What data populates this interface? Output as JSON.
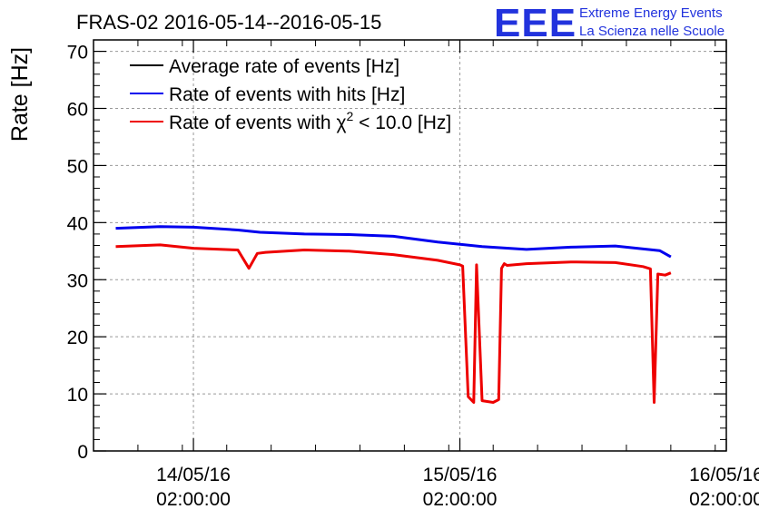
{
  "header": {
    "title": "FRAS-02 2016-05-14--2016-05-15",
    "logo_mark": "EEE",
    "logo_line1": "Extreme Energy Events",
    "logo_line2": "La Scienza nelle Scuole"
  },
  "colors": {
    "average": "#000000",
    "hits": "#0000ee",
    "chi2": "#ee0000",
    "grid": "#999999",
    "logo": "#2233dd"
  },
  "chart_data": {
    "type": "line",
    "title": "FRAS-02 2016-05-14--2016-05-15",
    "ylabel": "Rate [Hz]",
    "xlabel": "",
    "ylim": [
      0,
      72
    ],
    "yticks": [
      0,
      10,
      20,
      30,
      40,
      50,
      60,
      70
    ],
    "ytick_labels": [
      "0",
      "10",
      "20",
      "30",
      "40",
      "50",
      "60",
      "70"
    ],
    "xlim": [
      "2016-05-13 17:00",
      "2016-05-16 02:00"
    ],
    "xticks": [
      {
        "x": "2016-05-14 02:00:00",
        "date": "14/05/16",
        "time": "02:00:00"
      },
      {
        "x": "2016-05-15 02:00:00",
        "date": "15/05/16",
        "time": "02:00:00"
      },
      {
        "x": "2016-05-16 02:00:00",
        "date": "16/05/16",
        "time": "02:00:00"
      }
    ],
    "grid": true,
    "legend_position": "top-left",
    "legend": {
      "average": "Average rate of events [Hz]",
      "hits": "Rate of events with hits [Hz]",
      "chi2_prefix": "Rate of events with ",
      "chi2_symbol": "χ",
      "chi2_sup": "2",
      "chi2_suffix": " < 10.0 [Hz]"
    },
    "series": [
      {
        "name": "Average rate of events [Hz]",
        "x": [],
        "values": []
      },
      {
        "name": "Rate of events with hits [Hz]",
        "x": [
          "2016-05-13 19:00",
          "2016-05-13 23:00",
          "2016-05-14 02:00",
          "2016-05-14 06:00",
          "2016-05-14 08:00",
          "2016-05-14 12:00",
          "2016-05-14 16:00",
          "2016-05-14 20:00",
          "2016-05-15 00:00",
          "2016-05-15 04:00",
          "2016-05-15 08:00",
          "2016-05-15 12:00",
          "2016-05-15 16:00",
          "2016-05-15 20:00",
          "2016-05-15 21:00"
        ],
        "values": [
          39.0,
          39.3,
          39.2,
          38.7,
          38.3,
          38.0,
          37.9,
          37.6,
          36.6,
          35.8,
          35.3,
          35.7,
          35.9,
          35.1,
          34.0
        ]
      },
      {
        "name": "Rate of events with χ2 < 10.0 [Hz]",
        "x": [
          "2016-05-13 19:00",
          "2016-05-13 23:00",
          "2016-05-14 02:00",
          "2016-05-14 06:00",
          "2016-05-14 07:00",
          "2016-05-14 07:45",
          "2016-05-14 08:30",
          "2016-05-14 12:00",
          "2016-05-14 16:00",
          "2016-05-14 20:00",
          "2016-05-15 00:00",
          "2016-05-15 02:00",
          "2016-05-15 02:15",
          "2016-05-15 02:45",
          "2016-05-15 03:15",
          "2016-05-15 03:30",
          "2016-05-15 04:00",
          "2016-05-15 05:00",
          "2016-05-15 05:30",
          "2016-05-15 05:45",
          "2016-05-15 06:00",
          "2016-05-15 06:15",
          "2016-05-15 08:00",
          "2016-05-15 12:00",
          "2016-05-15 16:00",
          "2016-05-15 18:30",
          "2016-05-15 19:10",
          "2016-05-15 19:30",
          "2016-05-15 19:50",
          "2016-05-15 20:30",
          "2016-05-15 21:00"
        ],
        "values": [
          35.8,
          36.1,
          35.5,
          35.2,
          32.0,
          34.6,
          34.8,
          35.2,
          35.0,
          34.4,
          33.4,
          32.6,
          32.4,
          9.5,
          8.5,
          32.6,
          8.8,
          8.5,
          9.0,
          32.0,
          32.8,
          32.5,
          32.8,
          33.1,
          33.0,
          32.3,
          31.9,
          8.5,
          31.0,
          30.8,
          31.2
        ]
      }
    ]
  }
}
